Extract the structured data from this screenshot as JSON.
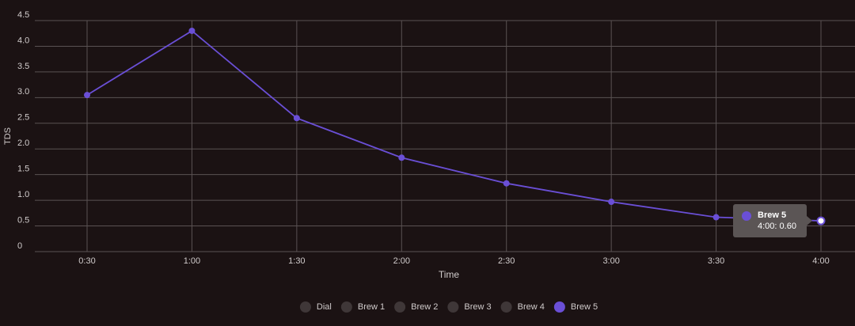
{
  "chart_data": {
    "type": "line",
    "x_label": "Time",
    "y_label": "TDS",
    "categories": [
      "0:30",
      "1:00",
      "1:30",
      "2:00",
      "2:30",
      "3:00",
      "3:30",
      "4:00"
    ],
    "series": [
      {
        "name": "Brew 5",
        "color": "#6a4fd6",
        "values": [
          3.05,
          4.3,
          2.6,
          1.83,
          1.33,
          0.97,
          0.67,
          0.6
        ]
      }
    ],
    "hidden_series": [
      "Dial",
      "Brew 1",
      "Brew 2",
      "Brew 3",
      "Brew 4"
    ],
    "ylim": [
      0,
      4.5
    ],
    "yticks": [
      0,
      0.5,
      {
        "value": 1,
        "label": "1.0"
      },
      1.5,
      {
        "value": 2,
        "label": "2.0"
      },
      2.5,
      {
        "value": 3,
        "label": "3.0"
      },
      3.5,
      {
        "value": 4,
        "label": "4.0"
      },
      4.5
    ],
    "grid": true,
    "tooltip": {
      "title": "Brew 5",
      "text": "4:00: 0.60"
    }
  }
}
